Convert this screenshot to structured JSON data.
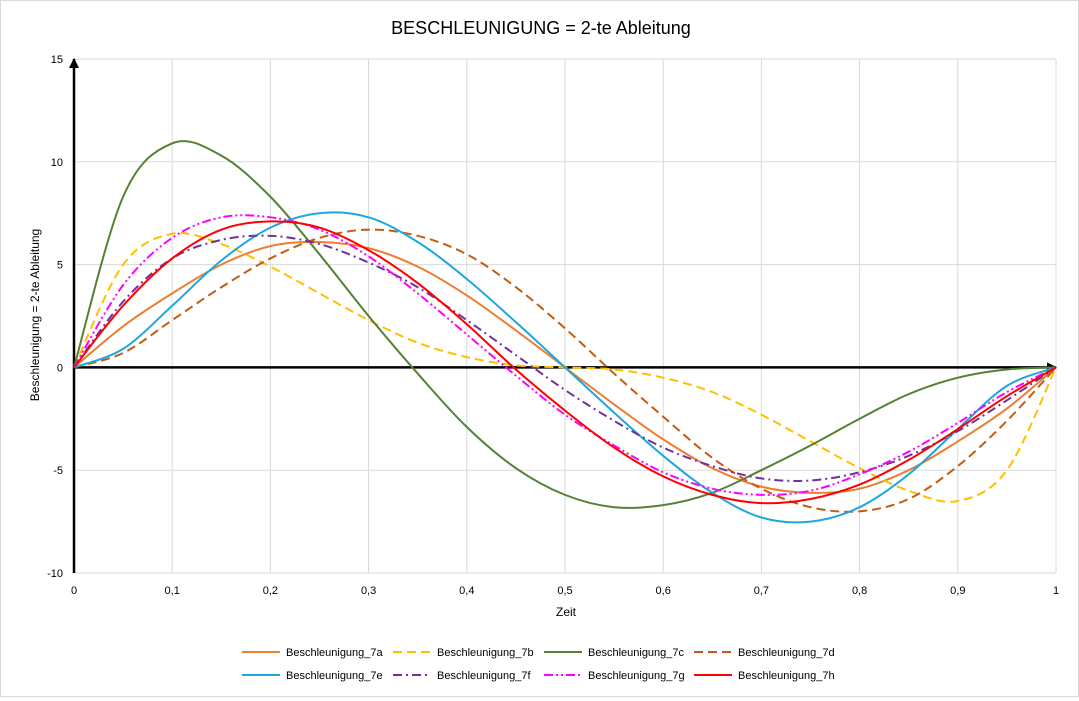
{
  "chart_data": {
    "type": "line",
    "title": "BESCHLEUNIGUNG = 2-te Ableitung",
    "xlabel": "Zeit",
    "ylabel": "Beschleunigung = 2-te Ableitung",
    "xlim": [
      0,
      1
    ],
    "ylim": [
      -10,
      15
    ],
    "xticks": [
      0,
      0.1,
      0.2,
      0.3,
      0.4,
      0.5,
      0.6,
      0.7,
      0.8,
      0.9,
      1
    ],
    "xtick_labels": [
      "0",
      "0,1",
      "0,2",
      "0,3",
      "0,4",
      "0,5",
      "0,6",
      "0,7",
      "0,8",
      "0,9",
      "1"
    ],
    "yticks": [
      -10,
      -5,
      0,
      5,
      10,
      15
    ],
    "ytick_labels": [
      "-10",
      "-5",
      "0",
      "5",
      "10",
      "15"
    ],
    "grid": true,
    "legend_position": "bottom",
    "x": [
      0,
      0.05,
      0.1,
      0.15,
      0.2,
      0.25,
      0.3,
      0.35,
      0.4,
      0.45,
      0.5,
      0.55,
      0.6,
      0.65,
      0.7,
      0.75,
      0.8,
      0.85,
      0.9,
      0.95,
      1
    ],
    "series": [
      {
        "name": "Beschleunigung_7a",
        "color": "#ED7D31",
        "dash": "solid",
        "values": [
          0,
          2.0,
          3.6,
          5.0,
          5.9,
          6.1,
          5.8,
          4.9,
          3.5,
          1.8,
          0,
          -1.8,
          -3.5,
          -4.9,
          -5.8,
          -6.1,
          -5.9,
          -5.0,
          -3.6,
          -2.0,
          0
        ]
      },
      {
        "name": "Beschleunigung_7b",
        "color": "#FFC000",
        "dash": "dash",
        "values": [
          0,
          5.0,
          6.5,
          6.0,
          4.9,
          3.6,
          2.3,
          1.2,
          0.5,
          0.1,
          0,
          -0.1,
          -0.5,
          -1.2,
          -2.3,
          -3.6,
          -4.9,
          -6.0,
          -6.5,
          -5.0,
          0
        ]
      },
      {
        "name": "Beschleunigung_7c",
        "color": "#548235",
        "dash": "solid",
        "values": [
          0,
          8.3,
          10.9,
          10.3,
          8.3,
          5.5,
          2.5,
          -0.3,
          -2.9,
          -4.9,
          -6.2,
          -6.8,
          -6.7,
          -6.1,
          -5.0,
          -3.8,
          -2.5,
          -1.3,
          -0.5,
          -0.1,
          0
        ]
      },
      {
        "name": "Beschleunigung_7d",
        "color": "#C55A11",
        "dash": "dash",
        "values": [
          0,
          0.7,
          2.3,
          3.9,
          5.3,
          6.3,
          6.7,
          6.4,
          5.5,
          3.9,
          1.9,
          -0.3,
          -2.4,
          -4.4,
          -5.9,
          -6.8,
          -7.0,
          -6.4,
          -4.8,
          -2.6,
          0
        ]
      },
      {
        "name": "Beschleunigung_7e",
        "color": "#1CA7E0",
        "dash": "solid",
        "values": [
          0,
          0.9,
          3.0,
          5.2,
          6.8,
          7.5,
          7.3,
          6.1,
          4.3,
          2.2,
          0,
          -2.2,
          -4.3,
          -6.1,
          -7.3,
          -7.5,
          -6.8,
          -5.2,
          -3.0,
          -0.9,
          0
        ]
      },
      {
        "name": "Beschleunigung_7f",
        "color": "#7030A0",
        "dash": "dashdot",
        "values": [
          0,
          3.2,
          5.3,
          6.2,
          6.4,
          6.0,
          5.1,
          3.9,
          2.3,
          0.6,
          -1.1,
          -2.6,
          -3.9,
          -4.8,
          -5.4,
          -5.5,
          -5.1,
          -4.3,
          -3.1,
          -1.6,
          0
        ]
      },
      {
        "name": "Beschleunigung_7g",
        "color": "#FF00FF",
        "dash": "dashdotdot",
        "values": [
          0,
          4.0,
          6.3,
          7.3,
          7.3,
          6.7,
          5.4,
          3.6,
          1.6,
          -0.4,
          -2.3,
          -3.8,
          -5.1,
          -5.9,
          -6.2,
          -6.0,
          -5.2,
          -4.1,
          -2.7,
          -1.2,
          0
        ]
      },
      {
        "name": "Beschleunigung_7h",
        "color": "#FF0000",
        "dash": "solid",
        "values": [
          0,
          3.0,
          5.3,
          6.7,
          7.1,
          6.8,
          5.7,
          4.1,
          2.1,
          -0.1,
          -2.1,
          -3.9,
          -5.3,
          -6.2,
          -6.6,
          -6.4,
          -5.7,
          -4.5,
          -3.0,
          -1.4,
          0
        ]
      }
    ]
  }
}
